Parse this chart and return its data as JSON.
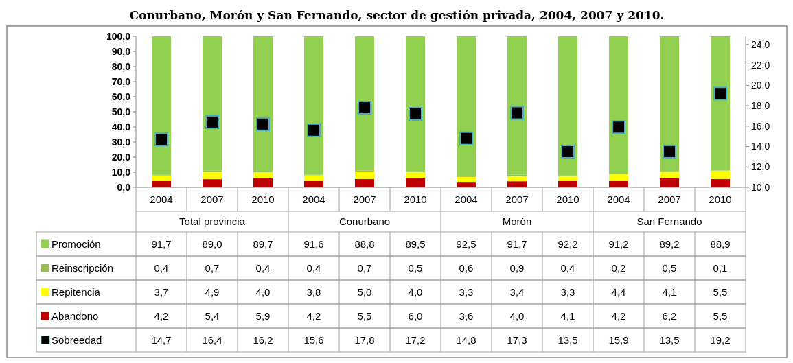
{
  "chart_data": {
    "type": "bar",
    "stacked": true,
    "title": "Conurbano, Morón y San Fernando, sector de gestión privada, 2004, 2007 y 2010.",
    "categories": [
      "2004",
      "2007",
      "2010",
      "2004",
      "2007",
      "2010",
      "2004",
      "2007",
      "2010",
      "2004",
      "2007",
      "2010"
    ],
    "annotations": [
      "Total provincia",
      "Conurbano",
      "Morón",
      "San Fernando"
    ],
    "series": [
      {
        "name": "Abandono",
        "color": "#c00000",
        "values": [
          4.2,
          5.4,
          5.9,
          4.2,
          5.5,
          6.0,
          3.6,
          4.0,
          4.1,
          4.2,
          6.2,
          5.5
        ],
        "value_labels": [
          "4,2",
          "5,4",
          "5,9",
          "4,2",
          "5,5",
          "6,0",
          "3,6",
          "4,0",
          "4,1",
          "4,2",
          "6,2",
          "5,5"
        ]
      },
      {
        "name": "Repitencia",
        "color": "#ffff00",
        "values": [
          3.7,
          4.9,
          4.0,
          3.8,
          5.0,
          4.0,
          3.3,
          3.4,
          3.3,
          4.4,
          4.1,
          5.5
        ],
        "value_labels": [
          "3,7",
          "4,9",
          "4,0",
          "3,8",
          "5,0",
          "4,0",
          "3,3",
          "3,4",
          "3,3",
          "4,4",
          "4,1",
          "5,5"
        ]
      },
      {
        "name": "Reinscripción",
        "color": "#9bbb59",
        "values": [
          0.4,
          0.7,
          0.4,
          0.4,
          0.7,
          0.5,
          0.6,
          0.9,
          0.4,
          0.2,
          0.5,
          0.1
        ],
        "value_labels": [
          "0,4",
          "0,7",
          "0,4",
          "0,4",
          "0,7",
          "0,5",
          "0,6",
          "0,9",
          "0,4",
          "0,2",
          "0,5",
          "0,1"
        ]
      },
      {
        "name": "Promoción",
        "color": "#92d050",
        "values": [
          91.7,
          89.0,
          89.7,
          91.6,
          88.8,
          89.5,
          92.5,
          91.7,
          92.2,
          91.2,
          89.2,
          88.9
        ],
        "value_labels": [
          "91,7",
          "89,0",
          "89,7",
          "91,6",
          "88,8",
          "89,5",
          "92,5",
          "91,7",
          "92,2",
          "91,2",
          "89,2",
          "88,9"
        ]
      },
      {
        "name": "Sobreedad",
        "type": "scatter",
        "axis": "y2",
        "marker": "square",
        "color": "#000000",
        "values": [
          14.7,
          16.4,
          16.2,
          15.6,
          17.8,
          17.2,
          14.8,
          17.3,
          13.5,
          15.9,
          13.5,
          19.2
        ],
        "value_labels": [
          "14,7",
          "16,4",
          "16,2",
          "15,6",
          "17,8",
          "17,2",
          "14,8",
          "17,3",
          "13,5",
          "15,9",
          "13,5",
          "19,2"
        ]
      }
    ],
    "ylim": [
      0,
      100
    ],
    "yticks": [
      {
        "value": 0,
        "label": "0,0"
      },
      {
        "value": 10,
        "label": "10,0"
      },
      {
        "value": 20,
        "label": "20,0"
      },
      {
        "value": 30,
        "label": "30,0"
      },
      {
        "value": 40,
        "label": "40,0"
      },
      {
        "value": 50,
        "label": "50,0"
      },
      {
        "value": 60,
        "label": "60,0"
      },
      {
        "value": 70,
        "label": "70,0"
      },
      {
        "value": 80,
        "label": "80,0"
      },
      {
        "value": 90,
        "label": "90,0"
      },
      {
        "value": 100,
        "label": "100,0"
      }
    ],
    "y2lim": [
      10,
      24.8
    ],
    "y2ticks": [
      {
        "value": 10,
        "label": "10,0"
      },
      {
        "value": 12,
        "label": "12,0"
      },
      {
        "value": 14,
        "label": "14,0"
      },
      {
        "value": 16,
        "label": "16,0"
      },
      {
        "value": 18,
        "label": "18,0"
      },
      {
        "value": 20,
        "label": "20,0"
      },
      {
        "value": 22,
        "label": "22,0"
      },
      {
        "value": 24,
        "label": "24,0"
      }
    ],
    "legend": "bottom"
  }
}
